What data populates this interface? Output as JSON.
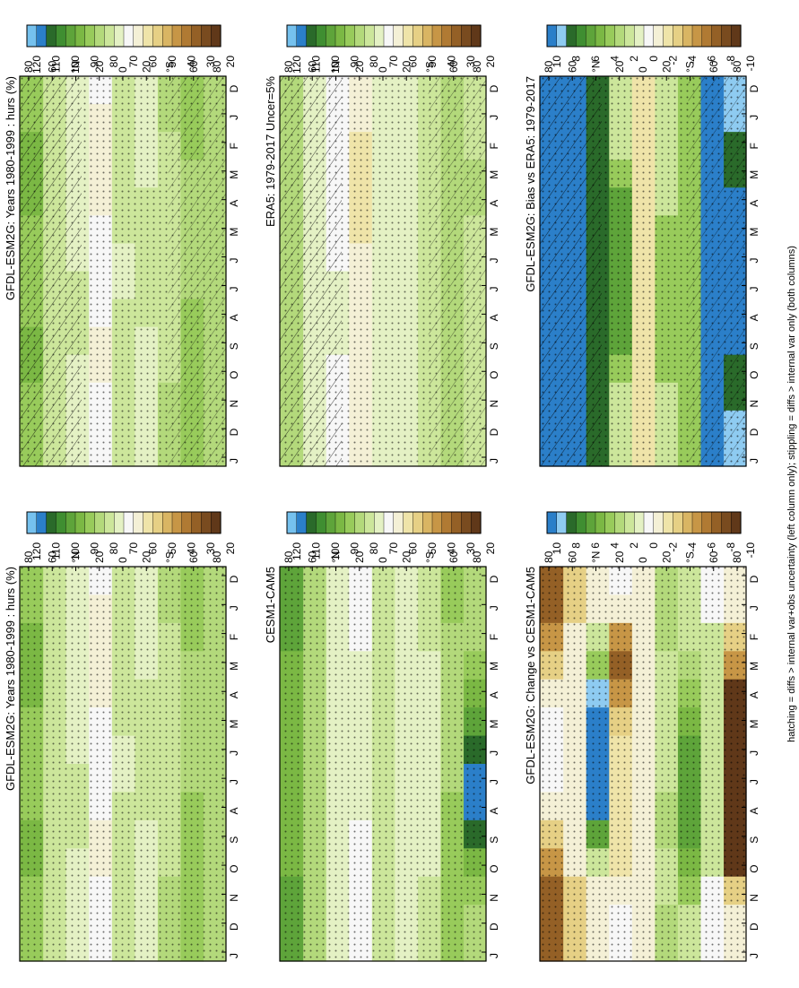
{
  "footnote": "hatching = diffs > internal var+obs uncertainty (left column only); stippling = diffs > internal var only (both columns)",
  "colors": {
    "abs": [
      "#75c1ee",
      "#2b7fc9",
      "#2a6a2a",
      "#3f8e31",
      "#5ea43a",
      "#7bb844",
      "#98cb5b",
      "#b3d97b",
      "#cce69b",
      "#e4f1c4",
      "#f7f7f7",
      "#f4f0d6",
      "#efe4a9",
      "#e6d085",
      "#d9b563",
      "#c79646",
      "#b07a33",
      "#946026",
      "#794b1f",
      "#603819"
    ],
    "diff": [
      "#2b7fc9",
      "#8ecbf1",
      "#2a6a2a",
      "#3f8e31",
      "#5ea43a",
      "#7bb844",
      "#98cb5b",
      "#b3d97b",
      "#cce69b",
      "#e4f1c4",
      "#f7f7f7",
      "#f4f0d6",
      "#efe4a9",
      "#e6d085",
      "#d9b563",
      "#c79646",
      "#b07a33",
      "#946026",
      "#794b1f",
      "#603819"
    ]
  },
  "chart_data": [
    {
      "id": "model-left",
      "type": "heatmap",
      "title": "GFDL-ESM2G: Years 1980-1999 : hurs (%)",
      "scale": "abs",
      "hatching": true,
      "xticklabels": [
        "D",
        "J",
        "F",
        "M",
        "A",
        "M",
        "J",
        "J",
        "A",
        "S",
        "O",
        "N",
        "D",
        "J"
      ],
      "yticklabels": [
        "80",
        "60",
        "°N",
        "20",
        "0",
        "20",
        "°S",
        "60",
        "80"
      ],
      "lat": [
        -80,
        -60,
        -40,
        -20,
        0,
        20,
        40,
        60,
        80
      ],
      "months": [
        "D",
        "J",
        "F",
        "M",
        "A",
        "M",
        "J",
        "J",
        "A",
        "S",
        "O",
        "N",
        "D",
        "J"
      ],
      "z": [
        [
          88,
          88,
          88,
          88,
          88,
          88,
          88,
          88,
          88,
          88,
          88,
          88,
          88,
          88
        ],
        [
          92,
          92,
          91,
          90,
          90,
          90,
          90,
          90,
          91,
          91,
          92,
          92,
          92,
          92
        ],
        [
          86,
          86,
          85,
          84,
          83,
          82,
          82,
          82,
          83,
          84,
          85,
          86,
          86,
          86
        ],
        [
          80,
          80,
          80,
          80,
          81,
          82,
          82,
          82,
          81,
          79,
          78,
          78,
          80,
          80
        ],
        [
          82,
          82,
          82,
          82,
          82,
          81,
          80,
          80,
          81,
          82,
          82,
          82,
          82,
          82
        ],
        [
          72,
          70,
          66,
          66,
          70,
          72,
          74,
          74,
          72,
          70,
          70,
          72,
          72,
          72
        ],
        [
          76,
          76,
          76,
          76,
          76,
          78,
          80,
          82,
          82,
          82,
          80,
          78,
          76,
          76
        ],
        [
          84,
          84,
          84,
          84,
          84,
          84,
          84,
          84,
          84,
          84,
          84,
          84,
          84,
          84
        ],
        [
          94,
          94,
          96,
          98,
          98,
          94,
          92,
          92,
          94,
          96,
          96,
          94,
          94,
          94
        ]
      ],
      "cbar_labels": [
        "120",
        "110",
        "100",
        "90",
        "80",
        "70",
        "60",
        "50",
        "40",
        "30",
        "20"
      ]
    },
    {
      "id": "model-right",
      "type": "heatmap",
      "title": "GFDL-ESM2G: Years 1980-1999 : hurs (%)",
      "scale": "abs",
      "hatching": false,
      "xticklabels": [
        "D",
        "J",
        "F",
        "M",
        "A",
        "M",
        "J",
        "J",
        "A",
        "S",
        "O",
        "N",
        "D",
        "J"
      ],
      "yticklabels": [
        "80",
        "60",
        "°N",
        "20",
        "0",
        "20",
        "°S",
        "60",
        "80"
      ],
      "lat": [
        -80,
        -60,
        -40,
        -20,
        0,
        20,
        40,
        60,
        80
      ],
      "months": [
        "D",
        "J",
        "F",
        "M",
        "A",
        "M",
        "J",
        "J",
        "A",
        "S",
        "O",
        "N",
        "D",
        "J"
      ],
      "z": [
        [
          88,
          88,
          88,
          88,
          88,
          88,
          88,
          88,
          88,
          88,
          88,
          88,
          88,
          88
        ],
        [
          92,
          92,
          91,
          90,
          90,
          90,
          90,
          90,
          91,
          91,
          92,
          92,
          92,
          92
        ],
        [
          86,
          86,
          85,
          84,
          83,
          82,
          82,
          82,
          83,
          84,
          85,
          86,
          86,
          86
        ],
        [
          80,
          80,
          80,
          80,
          81,
          82,
          82,
          82,
          81,
          79,
          78,
          78,
          80,
          80
        ],
        [
          82,
          82,
          82,
          82,
          82,
          81,
          80,
          80,
          81,
          82,
          82,
          82,
          82,
          82
        ],
        [
          72,
          70,
          66,
          66,
          70,
          72,
          74,
          74,
          72,
          70,
          70,
          72,
          72,
          72
        ],
        [
          76,
          76,
          76,
          76,
          76,
          78,
          80,
          82,
          82,
          82,
          80,
          78,
          76,
          76
        ],
        [
          84,
          84,
          84,
          84,
          84,
          84,
          84,
          84,
          84,
          84,
          84,
          84,
          84,
          84
        ],
        [
          94,
          94,
          96,
          98,
          98,
          94,
          92,
          92,
          94,
          96,
          96,
          94,
          94,
          94
        ]
      ],
      "cbar_labels": [
        "120",
        "110",
        "100",
        "90",
        "80",
        "70",
        "60",
        "50",
        "40",
        "30",
        "20"
      ]
    },
    {
      "id": "obs",
      "type": "heatmap",
      "title": "ERA5: 1979-2017 Uncer=5%",
      "scale": "abs",
      "hatching": true,
      "xticklabels": [
        "D",
        "J",
        "F",
        "M",
        "A",
        "M",
        "J",
        "J",
        "A",
        "S",
        "O",
        "N",
        "D",
        "J"
      ],
      "yticklabels": [
        "80",
        "60",
        "°N",
        "20",
        "0",
        "20",
        "°S",
        "60",
        "80"
      ],
      "lat": [
        -80,
        -60,
        -40,
        -20,
        0,
        20,
        40,
        60,
        80
      ],
      "months": [
        "D",
        "J",
        "F",
        "M",
        "A",
        "M",
        "J",
        "J",
        "A",
        "S",
        "O",
        "N",
        "D",
        "J"
      ],
      "z": [
        [
          82,
          82,
          84,
          86,
          86,
          84,
          84,
          84,
          84,
          84,
          84,
          84,
          82,
          82
        ],
        [
          88,
          88,
          88,
          88,
          88,
          88,
          88,
          88,
          88,
          88,
          88,
          88,
          88,
          88
        ],
        [
          84,
          84,
          83,
          82,
          82,
          82,
          82,
          82,
          82,
          83,
          84,
          84,
          84,
          84
        ],
        [
          78,
          78,
          78,
          78,
          78,
          78,
          78,
          78,
          76,
          76,
          76,
          78,
          78,
          78
        ],
        [
          80,
          80,
          80,
          80,
          80,
          80,
          80,
          80,
          80,
          80,
          80,
          80,
          80,
          80
        ],
        [
          70,
          68,
          64,
          62,
          62,
          64,
          68,
          70,
          70,
          68,
          68,
          70,
          70,
          70
        ],
        [
          72,
          72,
          72,
          72,
          72,
          72,
          74,
          76,
          76,
          76,
          74,
          72,
          72,
          72
        ],
        [
          80,
          80,
          80,
          80,
          80,
          80,
          80,
          80,
          80,
          80,
          80,
          80,
          80,
          80
        ],
        [
          86,
          86,
          86,
          86,
          88,
          88,
          86,
          86,
          86,
          86,
          86,
          86,
          86,
          86
        ]
      ],
      "cbar_labels": [
        "120",
        "110",
        "100",
        "90",
        "80",
        "70",
        "60",
        "50",
        "40",
        "30",
        "20"
      ]
    },
    {
      "id": "cesm",
      "type": "heatmap",
      "title": "CESM1-CAM5",
      "scale": "abs",
      "hatching": false,
      "xticklabels": [
        "D",
        "J",
        "F",
        "M",
        "A",
        "M",
        "J",
        "J",
        "A",
        "S",
        "O",
        "N",
        "D",
        "J"
      ],
      "yticklabels": [
        "80",
        "60",
        "°N",
        "20",
        "0",
        "20",
        "°S",
        "60",
        "80"
      ],
      "lat": [
        -80,
        -60,
        -40,
        -20,
        0,
        20,
        40,
        60,
        80
      ],
      "months": [
        "D",
        "J",
        "F",
        "M",
        "A",
        "M",
        "J",
        "J",
        "A",
        "S",
        "O",
        "N",
        "D",
        "J"
      ],
      "z": [
        [
          90,
          90,
          90,
          92,
          96,
          102,
          112,
          118,
          118,
          114,
          100,
          92,
          90,
          90
        ],
        [
          92,
          92,
          90,
          90,
          90,
          90,
          90,
          90,
          92,
          92,
          92,
          92,
          92,
          92
        ],
        [
          84,
          84,
          82,
          80,
          78,
          76,
          76,
          76,
          76,
          78,
          80,
          82,
          84,
          84
        ],
        [
          76,
          76,
          76,
          78,
          78,
          78,
          78,
          78,
          76,
          76,
          76,
          76,
          76,
          76
        ],
        [
          84,
          84,
          84,
          84,
          84,
          84,
          84,
          84,
          84,
          84,
          84,
          84,
          84,
          84
        ],
        [
          74,
          72,
          74,
          76,
          78,
          78,
          78,
          78,
          76,
          74,
          74,
          74,
          74,
          74
        ],
        [
          80,
          80,
          80,
          80,
          80,
          80,
          80,
          80,
          80,
          80,
          80,
          80,
          80,
          80
        ],
        [
          86,
          86,
          86,
          86,
          86,
          86,
          86,
          86,
          86,
          86,
          86,
          86,
          86,
          86
        ],
        [
          102,
          104,
          102,
          100,
          98,
          96,
          96,
          96,
          96,
          98,
          100,
          102,
          102,
          104
        ]
      ],
      "cbar_labels": [
        "120",
        "110",
        "100",
        "90",
        "80",
        "70",
        "60",
        "50",
        "40",
        "30",
        "20"
      ]
    },
    {
      "id": "bias",
      "type": "heatmap",
      "title": "GFDL-ESM2G: Bias vs ERA5: 1979-2017",
      "scale": "diff",
      "hatching": true,
      "xticklabels": [
        "D",
        "J",
        "F",
        "M",
        "A",
        "M",
        "J",
        "J",
        "A",
        "S",
        "O",
        "N",
        "D",
        "J"
      ],
      "yticklabels": [
        "80",
        "60",
        "°N",
        "20",
        "0",
        "20",
        "°S",
        "60",
        "80"
      ],
      "lat": [
        -80,
        -60,
        -40,
        -20,
        0,
        20,
        40,
        60,
        80
      ],
      "months": [
        "D",
        "J",
        "F",
        "M",
        "A",
        "M",
        "J",
        "J",
        "A",
        "S",
        "O",
        "N",
        "D",
        "J"
      ],
      "z": [
        [
          9,
          9,
          8,
          8,
          10,
          10,
          10,
          10,
          10,
          10,
          8,
          8,
          9,
          9
        ],
        [
          11,
          11,
          11,
          11,
          11,
          11,
          11,
          11,
          11,
          11,
          11,
          11,
          11,
          11
        ],
        [
          4,
          4,
          4,
          4,
          4,
          4,
          4,
          4,
          4,
          4,
          4,
          4,
          4,
          4
        ],
        [
          2,
          2,
          2,
          2,
          2,
          4,
          4,
          4,
          4,
          4,
          4,
          2,
          2,
          2
        ],
        [
          -3,
          -3,
          -3,
          -3,
          -3,
          -3,
          -3,
          -3,
          -3,
          -3,
          -3,
          -3,
          -3,
          -3
        ],
        [
          2,
          2,
          2,
          4,
          6,
          6,
          6,
          6,
          6,
          6,
          4,
          2,
          2,
          2
        ],
        [
          8,
          8,
          8,
          8,
          8,
          8,
          8,
          8,
          8,
          8,
          8,
          8,
          8,
          8
        ],
        [
          11,
          11,
          11,
          11,
          11,
          11,
          11,
          11,
          11,
          11,
          11,
          11,
          11,
          11
        ],
        [
          11,
          11,
          11,
          11,
          11,
          11,
          11,
          11,
          11,
          11,
          11,
          11,
          11,
          11
        ]
      ],
      "cbar_labels": [
        "10",
        "8",
        "6",
        "4",
        "2",
        "0",
        "-2",
        "-4",
        "-6",
        "-8",
        "-10"
      ]
    },
    {
      "id": "change",
      "type": "heatmap",
      "title": "GFDL-ESM2G: Change vs CESM1-CAM5",
      "scale": "diff",
      "hatching": false,
      "xticklabels": [
        "D",
        "J",
        "F",
        "M",
        "A",
        "M",
        "J",
        "J",
        "A",
        "S",
        "O",
        "N",
        "D",
        "J"
      ],
      "yticklabels": [
        "80",
        "60",
        "°N",
        "20",
        "0",
        "20",
        "°S",
        "60",
        "80"
      ],
      "lat": [
        -80,
        -60,
        -40,
        -20,
        0,
        20,
        40,
        60,
        80
      ],
      "months": [
        "D",
        "J",
        "F",
        "M",
        "A",
        "M",
        "J",
        "J",
        "A",
        "S",
        "O",
        "N",
        "D",
        "J"
      ],
      "z": [
        [
          -2,
          -2,
          -4,
          -6,
          -10,
          -14,
          -14,
          -14,
          -14,
          -14,
          -10,
          -4,
          -2,
          -2
        ],
        [
          0,
          0,
          2,
          2,
          2,
          2,
          2,
          2,
          2,
          2,
          2,
          0,
          0,
          0
        ],
        [
          2,
          2,
          2,
          3,
          4,
          5,
          6,
          6,
          6,
          6,
          5,
          4,
          2,
          2
        ],
        [
          3,
          3,
          3,
          2,
          2,
          2,
          2,
          2,
          3,
          3,
          2,
          2,
          3,
          3
        ],
        [
          -2,
          -2,
          -2,
          -2,
          -2,
          -2,
          -2,
          -2,
          -2,
          -2,
          -2,
          -2,
          -2,
          -2
        ],
        [
          -1,
          -2,
          -6,
          -8,
          -6,
          -4,
          -3,
          -3,
          -3,
          -3,
          -3,
          -2,
          -1,
          -1
        ],
        [
          -2,
          -2,
          2,
          4,
          9,
          12,
          12,
          12,
          10,
          6,
          2,
          -2,
          -2,
          -2
        ],
        [
          -4,
          -4,
          -2,
          -2,
          -2,
          -2,
          -2,
          -2,
          -2,
          -2,
          -2,
          -4,
          -4,
          -4
        ],
        [
          -8,
          -8,
          -6,
          -4,
          -2,
          0,
          0,
          0,
          -2,
          -4,
          -6,
          -8,
          -8,
          -8
        ]
      ],
      "cbar_labels": [
        "10",
        "8",
        "6",
        "4",
        "2",
        "0",
        "-2",
        "-4",
        "-6",
        "-8",
        "-10"
      ]
    }
  ]
}
